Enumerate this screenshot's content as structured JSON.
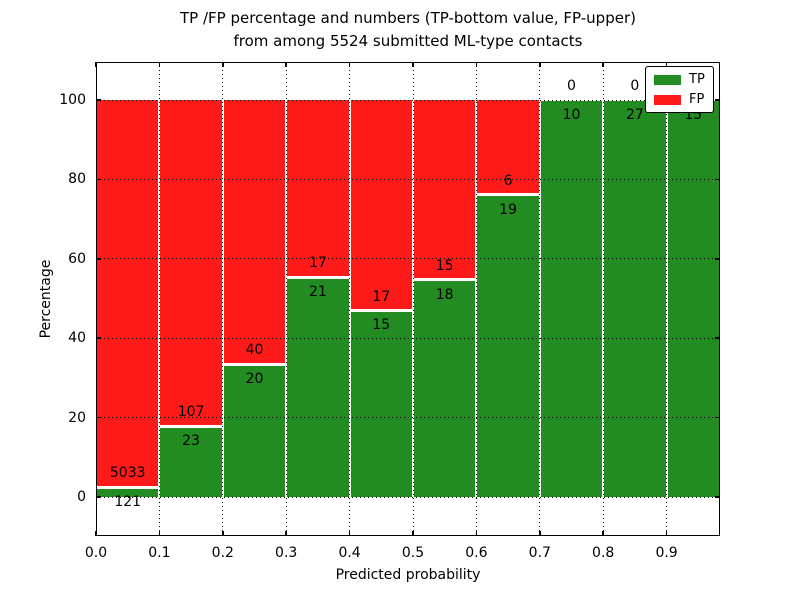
{
  "title": {
    "line1": "TP /FP percentage and numbers (TP-bottom value, FP-upper)",
    "line2": "from among 5524 submitted ML-type contacts"
  },
  "axes": {
    "xlabel": "Predicted probability",
    "ylabel": "Percentage",
    "xticks": [
      "0.0",
      "0.1",
      "0.2",
      "0.3",
      "0.4",
      "0.5",
      "0.6",
      "0.7",
      "0.8",
      "0.9"
    ],
    "yticks": [
      "0",
      "20",
      "40",
      "60",
      "80",
      "100"
    ],
    "ytick_values": [
      0,
      20,
      40,
      60,
      80,
      100
    ]
  },
  "legend": {
    "items": [
      {
        "label": "TP",
        "color": "#228B22"
      },
      {
        "label": "FP",
        "color": "#FF1A1A"
      }
    ]
  },
  "chart_data": {
    "type": "bar",
    "stacked": true,
    "normalized": "each bin scaled to 100%, green = TP fraction, red = FP fraction",
    "title": "TP /FP percentage and numbers (TP-bottom value, FP-upper) from among 5524 submitted ML-type contacts",
    "xlabel": "Predicted probability",
    "ylabel": "Percentage",
    "bin_edges": [
      0.0,
      0.1,
      0.2,
      0.3,
      0.4,
      0.5,
      0.6,
      0.7,
      0.8,
      0.9,
      1.0
    ],
    "series": [
      {
        "name": "TP",
        "color": "#228B22",
        "counts": [
          121,
          23,
          20,
          21,
          15,
          18,
          19,
          10,
          27,
          15
        ]
      },
      {
        "name": "FP",
        "color": "#FF1A1A",
        "counts": [
          5033,
          107,
          40,
          17,
          17,
          15,
          6,
          0,
          0,
          0
        ]
      }
    ],
    "tp_percent_per_bin": [
      2.3,
      17.7,
      33.3,
      55.3,
      46.9,
      54.5,
      76.0,
      100.0,
      100.0,
      100.0
    ],
    "total_contacts": 5524,
    "ylim": [
      -10,
      110
    ],
    "grid": true,
    "grid_style": "dotted, drawn above bars",
    "bar_edge_color": "#ffffff",
    "legend_position": "upper right"
  }
}
